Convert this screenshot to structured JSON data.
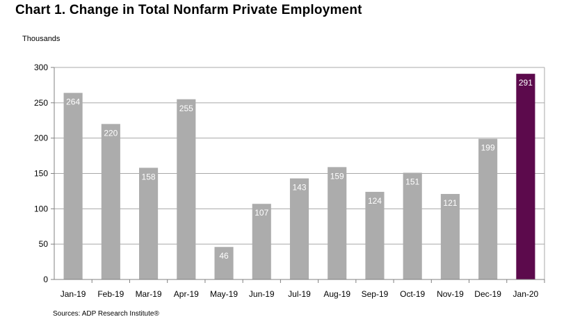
{
  "title": "Chart 1. Change in Total Nonfarm Private Employment",
  "unit_label": "Thousands",
  "source": "Sources: ADP Research Institute®",
  "colors": {
    "bar": "#acacac",
    "highlight": "#5c0a4c",
    "grid": "#a8a8a8",
    "axis": "#808080",
    "label": "#ffffff"
  },
  "chart_data": {
    "type": "bar",
    "title": "Chart 1. Change in Total Nonfarm Private Employment",
    "ylabel": "Thousands",
    "xlabel": "",
    "categories": [
      "Jan-19",
      "Feb-19",
      "Mar-19",
      "Apr-19",
      "May-19",
      "Jun-19",
      "Jul-19",
      "Aug-19",
      "Sep-19",
      "Oct-19",
      "Nov-19",
      "Dec-19",
      "Jan-20"
    ],
    "values": [
      264,
      220,
      158,
      255,
      46,
      107,
      143,
      159,
      124,
      151,
      121,
      199,
      291
    ],
    "highlight_category": "Jan-20",
    "ylim": [
      0,
      300
    ],
    "yticks": [
      0,
      50,
      100,
      150,
      200,
      250,
      300
    ],
    "grid": true,
    "legend": "none"
  }
}
